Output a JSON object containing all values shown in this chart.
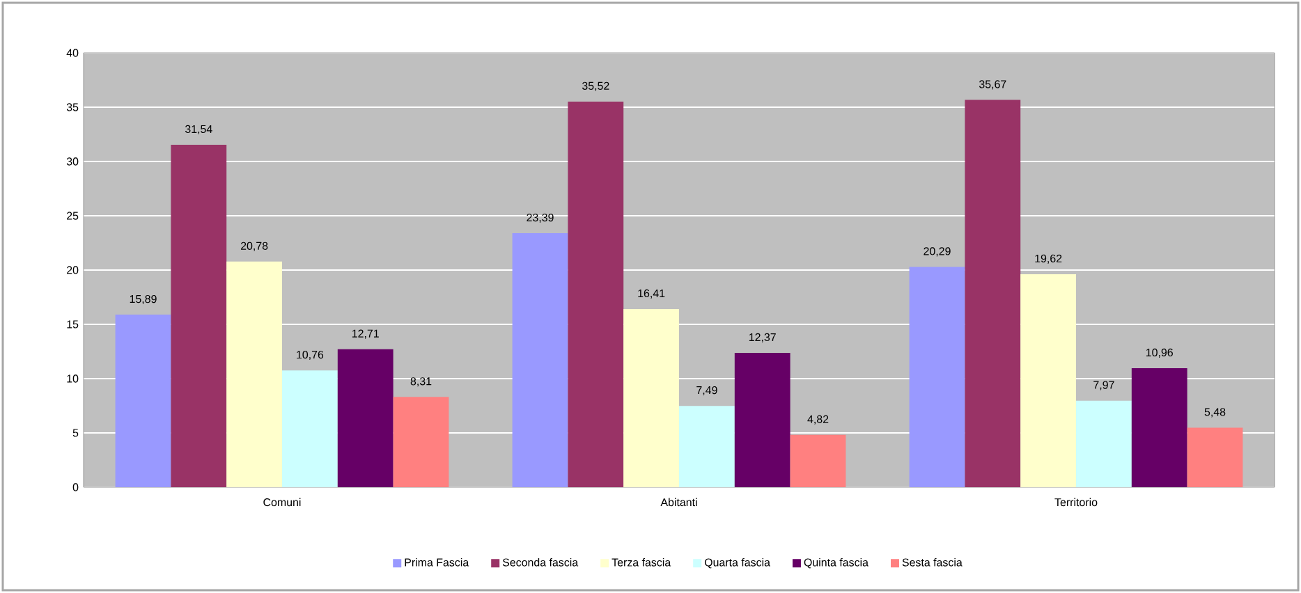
{
  "chart_data": {
    "type": "bar",
    "categories": [
      "Comuni",
      "Abitanti",
      "Territorio"
    ],
    "series": [
      {
        "name": "Prima Fascia",
        "color": "#9999ff",
        "values": [
          15.89,
          23.39,
          20.29
        ],
        "value_labels": [
          "15,89",
          "23,39",
          "20,29"
        ]
      },
      {
        "name": "Seconda fascia",
        "color": "#993366",
        "values": [
          31.54,
          35.52,
          35.67
        ],
        "value_labels": [
          "31,54",
          "35,52",
          "35,67"
        ]
      },
      {
        "name": "Terza fascia",
        "color": "#ffffcc",
        "values": [
          20.78,
          16.41,
          19.62
        ],
        "value_labels": [
          "20,78",
          "16,41",
          "19,62"
        ]
      },
      {
        "name": "Quarta fascia",
        "color": "#ccffff",
        "values": [
          10.76,
          7.49,
          7.97
        ],
        "value_labels": [
          "10,76",
          "7,49",
          "7,97"
        ]
      },
      {
        "name": "Quinta fascia",
        "color": "#660066",
        "values": [
          12.71,
          12.37,
          10.96
        ],
        "value_labels": [
          "12,71",
          "12,37",
          "10,96"
        ]
      },
      {
        "name": "Sesta fascia",
        "color": "#ff8080",
        "values": [
          8.31,
          4.82,
          5.48
        ],
        "value_labels": [
          "8,31",
          "4,82",
          "5,48"
        ]
      }
    ],
    "ylim": [
      0,
      40
    ],
    "yticks": [
      0,
      5,
      10,
      15,
      20,
      25,
      30,
      35,
      40
    ],
    "grid": "y",
    "legend": "bottom"
  }
}
